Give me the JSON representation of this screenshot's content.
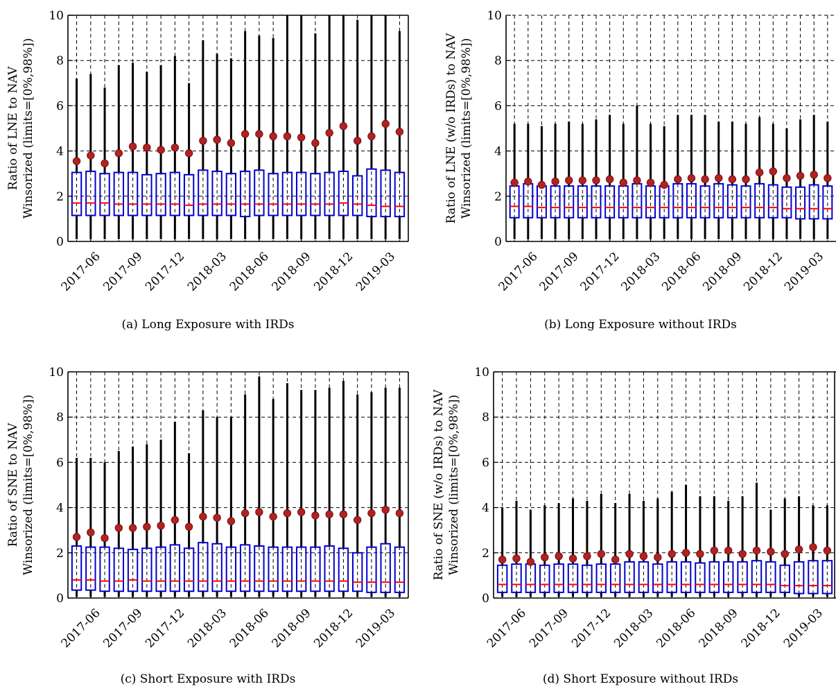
{
  "chart_data": [
    {
      "type": "box",
      "caption": "(a) Long Exposure with IRDs",
      "ylabel": [
        "Ratio of LNE to NAV",
        "Winsorized (limits=[0%,98%])"
      ],
      "ylim": [
        0,
        10
      ],
      "yticks": [
        0,
        2,
        4,
        6,
        8,
        10
      ],
      "xtick_labels": [
        "2017-06",
        "2017-09",
        "2017-12",
        "2018-03",
        "2018-06",
        "2018-09",
        "2018-12",
        "2019-03"
      ],
      "xtick_positions": [
        1,
        4,
        7,
        10,
        13,
        16,
        19,
        22
      ],
      "grid": "dashed",
      "months": [
        "2017-05",
        "2017-06",
        "2017-07",
        "2017-08",
        "2017-09",
        "2017-10",
        "2017-11",
        "2017-12",
        "2018-01",
        "2018-02",
        "2018-03",
        "2018-04",
        "2018-05",
        "2018-06",
        "2018-07",
        "2018-08",
        "2018-09",
        "2018-10",
        "2018-11",
        "2018-12",
        "2019-01",
        "2019-02",
        "2019-03",
        "2019-04"
      ],
      "whisker_low": [
        0.1,
        0.1,
        0.1,
        0.1,
        0.1,
        0.1,
        0.1,
        0.1,
        0.1,
        0.1,
        0.1,
        0.1,
        0.1,
        0.1,
        0.1,
        0.1,
        0.1,
        0.1,
        0.1,
        0.1,
        0.1,
        0.1,
        0.1,
        0.1
      ],
      "q1": [
        1.15,
        1.15,
        1.15,
        1.15,
        1.15,
        1.15,
        1.15,
        1.15,
        1.15,
        1.15,
        1.15,
        1.15,
        1.1,
        1.15,
        1.15,
        1.15,
        1.15,
        1.15,
        1.15,
        1.15,
        1.15,
        1.1,
        1.1,
        1.1
      ],
      "median": [
        1.7,
        1.7,
        1.7,
        1.65,
        1.65,
        1.65,
        1.65,
        1.65,
        1.6,
        1.65,
        1.65,
        1.65,
        1.65,
        1.65,
        1.65,
        1.65,
        1.65,
        1.65,
        1.65,
        1.7,
        1.65,
        1.6,
        1.55,
        1.55
      ],
      "q3": [
        3.05,
        3.1,
        3.0,
        3.05,
        3.05,
        2.95,
        3.0,
        3.05,
        2.95,
        3.15,
        3.1,
        3.0,
        3.1,
        3.15,
        3.0,
        3.05,
        3.05,
        3.0,
        3.05,
        3.1,
        2.9,
        3.2,
        3.15,
        3.05
      ],
      "whisker_high": [
        7.2,
        7.4,
        6.8,
        7.8,
        7.9,
        7.5,
        7.8,
        8.2,
        7.0,
        8.9,
        8.3,
        8.1,
        9.3,
        9.1,
        9.0,
        10.0,
        10.0,
        9.2,
        10.0,
        10.0,
        9.8,
        10.0,
        10.0,
        9.3
      ],
      "mean": [
        3.55,
        3.8,
        3.45,
        3.9,
        4.2,
        4.15,
        4.05,
        4.15,
        3.9,
        4.45,
        4.5,
        4.35,
        4.75,
        4.75,
        4.65,
        4.65,
        4.6,
        4.35,
        4.8,
        5.1,
        4.45,
        4.65,
        5.2,
        4.85
      ]
    },
    {
      "type": "box",
      "caption": "(b) Long Exposure without IRDs",
      "ylabel": [
        "Ratio of LNE (w/o IRDs) to NAV",
        "Winsorized (limits=[0%,98%])"
      ],
      "ylim": [
        0,
        10
      ],
      "yticks": [
        0,
        2,
        4,
        6,
        8,
        10
      ],
      "xtick_labels": [
        "2017-06",
        "2017-09",
        "2017-12",
        "2018-03",
        "2018-06",
        "2018-09",
        "2018-12",
        "2019-03"
      ],
      "xtick_positions": [
        1,
        4,
        7,
        10,
        13,
        16,
        19,
        22
      ],
      "grid": "dashed",
      "months": [
        "2017-05",
        "2017-06",
        "2017-07",
        "2017-08",
        "2017-09",
        "2017-10",
        "2017-11",
        "2017-12",
        "2018-01",
        "2018-02",
        "2018-03",
        "2018-04",
        "2018-05",
        "2018-06",
        "2018-07",
        "2018-08",
        "2018-09",
        "2018-10",
        "2018-11",
        "2018-12",
        "2019-01",
        "2019-02",
        "2019-03",
        "2019-04"
      ],
      "whisker_low": [
        0.1,
        0.1,
        0.1,
        0.1,
        0.1,
        0.1,
        0.1,
        0.1,
        0.1,
        0.1,
        0.1,
        0.1,
        0.1,
        0.1,
        0.1,
        0.1,
        0.1,
        0.1,
        0.1,
        0.1,
        0.1,
        0.1,
        0.1,
        0.1
      ],
      "q1": [
        1.05,
        1.05,
        1.05,
        1.05,
        1.05,
        1.05,
        1.05,
        1.05,
        1.05,
        1.05,
        1.05,
        1.05,
        1.05,
        1.05,
        1.05,
        1.05,
        1.05,
        1.05,
        1.05,
        1.05,
        1.05,
        1.0,
        1.0,
        1.0
      ],
      "median": [
        1.55,
        1.55,
        1.5,
        1.5,
        1.5,
        1.5,
        1.5,
        1.5,
        1.5,
        1.5,
        1.5,
        1.5,
        1.5,
        1.5,
        1.5,
        1.5,
        1.5,
        1.5,
        1.5,
        1.5,
        1.45,
        1.45,
        1.45,
        1.45
      ],
      "q3": [
        2.45,
        2.55,
        2.45,
        2.45,
        2.45,
        2.45,
        2.45,
        2.45,
        2.45,
        2.55,
        2.45,
        2.45,
        2.55,
        2.55,
        2.45,
        2.55,
        2.5,
        2.45,
        2.55,
        2.5,
        2.4,
        2.4,
        2.5,
        2.45
      ],
      "whisker_high": [
        5.2,
        5.2,
        5.1,
        5.2,
        5.3,
        5.2,
        5.4,
        5.6,
        5.2,
        6.0,
        5.2,
        5.1,
        5.6,
        5.6,
        5.6,
        5.3,
        5.3,
        5.2,
        5.5,
        5.2,
        5.0,
        5.4,
        5.6,
        5.3
      ],
      "mean": [
        2.6,
        2.65,
        2.5,
        2.65,
        2.7,
        2.7,
        2.7,
        2.75,
        2.6,
        2.7,
        2.6,
        2.5,
        2.75,
        2.8,
        2.75,
        2.8,
        2.75,
        2.75,
        3.05,
        3.1,
        2.8,
        2.9,
        2.95,
        2.8
      ]
    },
    {
      "type": "box",
      "caption": "(c) Short Exposure with IRDs",
      "ylabel": [
        "Ratio of SNE to NAV",
        "Winsorized (limits=[0%,98%])"
      ],
      "ylim": [
        0,
        10
      ],
      "yticks": [
        0,
        2,
        4,
        6,
        8,
        10
      ],
      "xtick_labels": [
        "2017-06",
        "2017-09",
        "2017-12",
        "2018-03",
        "2018-06",
        "2018-09",
        "2018-12",
        "2019-03"
      ],
      "xtick_positions": [
        1,
        4,
        7,
        10,
        13,
        16,
        19,
        22
      ],
      "grid": "dashed",
      "months": [
        "2017-05",
        "2017-06",
        "2017-07",
        "2017-08",
        "2017-09",
        "2017-10",
        "2017-11",
        "2017-12",
        "2018-01",
        "2018-02",
        "2018-03",
        "2018-04",
        "2018-05",
        "2018-06",
        "2018-07",
        "2018-08",
        "2018-09",
        "2018-10",
        "2018-11",
        "2018-12",
        "2019-01",
        "2019-02",
        "2019-03",
        "2019-04"
      ],
      "whisker_low": [
        0.05,
        0.05,
        0.05,
        0.05,
        0.05,
        0.05,
        0.05,
        0.05,
        0.05,
        0.05,
        0.05,
        0.05,
        0.05,
        0.05,
        0.05,
        0.05,
        0.05,
        0.05,
        0.05,
        0.05,
        0.05,
        0.05,
        0.05,
        0.05
      ],
      "q1": [
        0.35,
        0.35,
        0.3,
        0.3,
        0.3,
        0.3,
        0.3,
        0.3,
        0.3,
        0.3,
        0.3,
        0.3,
        0.3,
        0.3,
        0.3,
        0.3,
        0.3,
        0.3,
        0.3,
        0.3,
        0.3,
        0.25,
        0.25,
        0.25
      ],
      "median": [
        0.8,
        0.8,
        0.75,
        0.75,
        0.8,
        0.75,
        0.75,
        0.75,
        0.75,
        0.75,
        0.75,
        0.75,
        0.75,
        0.75,
        0.75,
        0.75,
        0.75,
        0.75,
        0.75,
        0.75,
        0.7,
        0.7,
        0.7,
        0.7
      ],
      "q3": [
        2.3,
        2.25,
        2.25,
        2.2,
        2.15,
        2.2,
        2.25,
        2.35,
        2.2,
        2.45,
        2.4,
        2.25,
        2.35,
        2.3,
        2.25,
        2.25,
        2.25,
        2.25,
        2.3,
        2.2,
        2.0,
        2.25,
        2.4,
        2.25
      ],
      "whisker_high": [
        6.2,
        6.2,
        6.0,
        6.5,
        6.7,
        6.8,
        7.0,
        7.8,
        6.4,
        8.3,
        8.0,
        8.0,
        9.0,
        9.8,
        8.8,
        9.5,
        9.2,
        9.2,
        9.3,
        9.6,
        9.0,
        9.1,
        9.3,
        9.3
      ],
      "mean": [
        2.7,
        2.9,
        2.65,
        3.1,
        3.1,
        3.15,
        3.2,
        3.45,
        3.15,
        3.6,
        3.55,
        3.4,
        3.75,
        3.8,
        3.6,
        3.75,
        3.8,
        3.65,
        3.7,
        3.7,
        3.45,
        3.75,
        3.9,
        3.75
      ]
    },
    {
      "type": "box",
      "caption": "(d) Short Exposure without IRDs",
      "ylabel": [
        "Ratio of SNE (w/o IRDs) to NAV",
        "Winsorized (limits=[0%,98%])"
      ],
      "ylim": [
        0,
        10
      ],
      "yticks": [
        0,
        2,
        4,
        6,
        8,
        10
      ],
      "xtick_labels": [
        "2017-06",
        "2017-09",
        "2017-12",
        "2018-03",
        "2018-06",
        "2018-09",
        "2018-12",
        "2019-03"
      ],
      "xtick_positions": [
        1,
        4,
        7,
        10,
        13,
        16,
        19,
        22
      ],
      "grid": "dashed",
      "months": [
        "2017-05",
        "2017-06",
        "2017-07",
        "2017-08",
        "2017-09",
        "2017-10",
        "2017-11",
        "2017-12",
        "2018-01",
        "2018-02",
        "2018-03",
        "2018-04",
        "2018-05",
        "2018-06",
        "2018-07",
        "2018-08",
        "2018-09",
        "2018-10",
        "2018-11",
        "2018-12",
        "2019-01",
        "2019-02",
        "2019-03",
        "2019-04"
      ],
      "whisker_low": [
        0.05,
        0.05,
        0.05,
        0.05,
        0.05,
        0.05,
        0.05,
        0.05,
        0.05,
        0.05,
        0.05,
        0.05,
        0.05,
        0.05,
        0.05,
        0.05,
        0.05,
        0.05,
        0.05,
        0.05,
        0.05,
        0.05,
        0.05,
        0.05
      ],
      "q1": [
        0.25,
        0.25,
        0.25,
        0.25,
        0.25,
        0.25,
        0.25,
        0.25,
        0.25,
        0.25,
        0.25,
        0.25,
        0.25,
        0.25,
        0.25,
        0.25,
        0.25,
        0.25,
        0.25,
        0.25,
        0.25,
        0.2,
        0.2,
        0.2
      ],
      "median": [
        0.6,
        0.6,
        0.6,
        0.6,
        0.6,
        0.6,
        0.6,
        0.6,
        0.6,
        0.6,
        0.6,
        0.6,
        0.6,
        0.6,
        0.6,
        0.6,
        0.6,
        0.6,
        0.6,
        0.6,
        0.55,
        0.55,
        0.55,
        0.55
      ],
      "q3": [
        1.45,
        1.5,
        1.5,
        1.45,
        1.5,
        1.5,
        1.45,
        1.5,
        1.5,
        1.6,
        1.6,
        1.5,
        1.6,
        1.6,
        1.55,
        1.6,
        1.6,
        1.6,
        1.65,
        1.6,
        1.45,
        1.6,
        1.65,
        1.65
      ],
      "whisker_high": [
        4.0,
        4.3,
        3.9,
        4.1,
        4.2,
        4.4,
        4.3,
        4.6,
        4.2,
        4.6,
        4.3,
        4.4,
        4.7,
        5.0,
        4.5,
        4.5,
        4.3,
        4.5,
        5.1,
        3.9,
        4.4,
        4.5,
        4.1,
        4.1
      ],
      "mean": [
        1.7,
        1.75,
        1.6,
        1.8,
        1.85,
        1.75,
        1.85,
        1.95,
        1.7,
        1.95,
        1.85,
        1.8,
        1.95,
        2.0,
        1.95,
        2.1,
        2.1,
        1.95,
        2.1,
        2.05,
        1.95,
        2.15,
        2.25,
        2.1
      ]
    }
  ],
  "colors": {
    "box": "#0000cc",
    "median": "#ff0000",
    "whisker": "#000000",
    "mean": "#b22222",
    "mean_edge": "#7a1010",
    "grid": "#000000"
  }
}
